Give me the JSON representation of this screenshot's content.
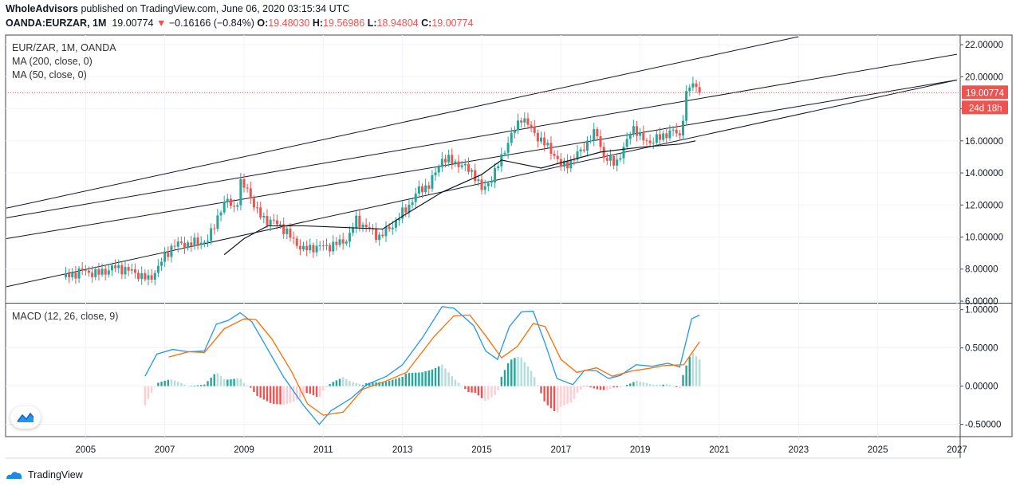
{
  "header": {
    "publisher": "WholeAdvisors",
    "published_text": " published on TradingView.com, June 06, 2020 03:15:34 UTC",
    "symbol": "OANDA:EURZAR, 1M",
    "last": "19.00774",
    "change_arrow": "▼",
    "change": "−0.16166 (−0.84%)",
    "o_label": "O:",
    "o": "19.48030",
    "h_label": "H:",
    "h": "19.56986",
    "l_label": "L:",
    "l": "18.94804",
    "c_label": "C:",
    "c": "19.00774"
  },
  "legend": {
    "title": "EUR/ZAR, 1M, OANDA",
    "ma200": "MA (200, close, 0)",
    "ma50": "MA (50, close, 0)",
    "macd": "MACD (12, 26, close, 9)"
  },
  "price_label": "19.00774",
  "countdown_label": "24d 18h",
  "footer": {
    "brand": "TradingView"
  },
  "colors": {
    "up": "#26a69a",
    "down": "#ef5350",
    "macd": "#2196f3",
    "signal": "#ff6d00",
    "price_line": "#ef5350"
  },
  "chart_data": [
    {
      "type": "candlestick",
      "title": "EUR/ZAR, 1M, OANDA",
      "x_ticks": [
        "2005",
        "2007",
        "2009",
        "2011",
        "2013",
        "2015",
        "2017",
        "2019",
        "2021",
        "2023",
        "2025",
        "2027"
      ],
      "y_ticks": [
        "22.00000",
        "20.00000",
        "18.00000",
        "16.00000",
        "14.00000",
        "12.00000",
        "10.00000",
        "8.00000",
        "6.00000"
      ],
      "ylim": [
        5.9,
        22.6
      ],
      "xlim": [
        2002.98,
        2027.08
      ],
      "last_price": 19.00774,
      "close_path": [
        [
          2004.5,
          7.5
        ],
        [
          2004.9,
          7.9
        ],
        [
          2005.3,
          7.7
        ],
        [
          2005.7,
          8.1
        ],
        [
          2006.0,
          8.0
        ],
        [
          2006.4,
          7.6
        ],
        [
          2006.6,
          7.3
        ],
        [
          2006.9,
          8.4
        ],
        [
          2007.2,
          9.5
        ],
        [
          2007.7,
          9.6
        ],
        [
          2008.1,
          9.8
        ],
        [
          2008.4,
          11.7
        ],
        [
          2008.6,
          12.3
        ],
        [
          2008.8,
          11.7
        ],
        [
          2008.9,
          13.3
        ],
        [
          2009.1,
          13.0
        ],
        [
          2009.3,
          11.6
        ],
        [
          2009.6,
          11.0
        ],
        [
          2009.9,
          10.8
        ],
        [
          2010.2,
          9.9
        ],
        [
          2010.5,
          9.2
        ],
        [
          2010.8,
          9.4
        ],
        [
          2011.1,
          9.4
        ],
        [
          2011.5,
          9.7
        ],
        [
          2011.7,
          10.2
        ],
        [
          2011.8,
          11.1
        ],
        [
          2012.1,
          10.6
        ],
        [
          2012.4,
          10.0
        ],
        [
          2012.7,
          10.6
        ],
        [
          2012.9,
          11.2
        ],
        [
          2013.2,
          12.1
        ],
        [
          2013.4,
          12.9
        ],
        [
          2013.7,
          13.3
        ],
        [
          2014.0,
          14.9
        ],
        [
          2014.4,
          14.6
        ],
        [
          2014.8,
          14.0
        ],
        [
          2015.0,
          12.9
        ],
        [
          2015.3,
          13.8
        ],
        [
          2015.6,
          15.6
        ],
        [
          2016.0,
          17.5
        ],
        [
          2016.2,
          16.9
        ],
        [
          2016.5,
          16.0
        ],
        [
          2016.8,
          15.3
        ],
        [
          2017.0,
          14.4
        ],
        [
          2017.3,
          14.8
        ],
        [
          2017.6,
          15.7
        ],
        [
          2017.9,
          16.6
        ],
        [
          2018.1,
          14.8
        ],
        [
          2018.4,
          14.7
        ],
        [
          2018.6,
          15.5
        ],
        [
          2018.8,
          17.0
        ],
        [
          2019.0,
          16.2
        ],
        [
          2019.3,
          15.9
        ],
        [
          2019.6,
          16.4
        ],
        [
          2019.9,
          16.6
        ],
        [
          2020.0,
          16.3
        ],
        [
          2020.2,
          19.3
        ],
        [
          2020.4,
          19.6
        ],
        [
          2020.5,
          19.0
        ]
      ],
      "ma50": [
        [
          2008.5,
          8.9
        ],
        [
          2009.0,
          9.9
        ],
        [
          2009.6,
          10.7
        ],
        [
          2010.5,
          10.7
        ],
        [
          2011.5,
          10.6
        ],
        [
          2012.5,
          10.5
        ],
        [
          2013.0,
          11.3
        ],
        [
          2014.0,
          12.8
        ],
        [
          2015.0,
          13.9
        ],
        [
          2015.5,
          14.8
        ],
        [
          2016.5,
          14.3
        ],
        [
          2018.0,
          15.3
        ],
        [
          2019.0,
          15.6
        ],
        [
          2020.0,
          15.8
        ],
        [
          2020.4,
          16.0
        ]
      ],
      "trendlines": [
        {
          "x1": 2003.0,
          "y1": 11.8,
          "x2": 2023.0,
          "y2": 22.5
        },
        {
          "x1": 2003.0,
          "y1": 11.2,
          "x2": 2027.0,
          "y2": 21.4
        },
        {
          "x1": 2003.0,
          "y1": 9.9,
          "x2": 2027.0,
          "y2": 19.8
        },
        {
          "x1": 2003.0,
          "y1": 6.9,
          "x2": 2027.0,
          "y2": 19.8
        }
      ]
    },
    {
      "type": "macd",
      "title": "MACD (12, 26, close, 9)",
      "y_ticks": [
        "1.00000",
        "0.50000",
        "0.00000",
        "-0.50000"
      ],
      "ylim": [
        -0.66,
        1.08
      ],
      "macd": [
        [
          2006.5,
          0.13
        ],
        [
          2006.8,
          0.42
        ],
        [
          2007.2,
          0.48
        ],
        [
          2007.6,
          0.45
        ],
        [
          2008.0,
          0.46
        ],
        [
          2008.3,
          0.81
        ],
        [
          2008.6,
          0.86
        ],
        [
          2008.9,
          0.96
        ],
        [
          2009.2,
          0.84
        ],
        [
          2009.6,
          0.48
        ],
        [
          2010.0,
          0.12
        ],
        [
          2010.5,
          -0.25
        ],
        [
          2010.9,
          -0.5
        ],
        [
          2011.2,
          -0.32
        ],
        [
          2011.7,
          -0.16
        ],
        [
          2012.1,
          0.02
        ],
        [
          2012.6,
          0.13
        ],
        [
          2013.0,
          0.28
        ],
        [
          2013.5,
          0.63
        ],
        [
          2014.0,
          1.04
        ],
        [
          2014.3,
          1.02
        ],
        [
          2014.8,
          0.79
        ],
        [
          2015.1,
          0.46
        ],
        [
          2015.4,
          0.35
        ],
        [
          2015.7,
          0.78
        ],
        [
          2016.0,
          0.97
        ],
        [
          2016.3,
          0.98
        ],
        [
          2016.6,
          0.56
        ],
        [
          2016.9,
          0.1
        ],
        [
          2017.3,
          0.02
        ],
        [
          2017.6,
          0.21
        ],
        [
          2017.9,
          0.2
        ],
        [
          2018.2,
          0.1
        ],
        [
          2018.5,
          0.14
        ],
        [
          2018.9,
          0.28
        ],
        [
          2019.3,
          0.26
        ],
        [
          2019.7,
          0.3
        ],
        [
          2020.0,
          0.25
        ],
        [
          2020.3,
          0.88
        ],
        [
          2020.5,
          0.93
        ]
      ],
      "signal": [
        [
          2007.1,
          0.38
        ],
        [
          2007.6,
          0.45
        ],
        [
          2008.0,
          0.44
        ],
        [
          2008.5,
          0.75
        ],
        [
          2009.0,
          0.88
        ],
        [
          2009.3,
          0.87
        ],
        [
          2009.7,
          0.62
        ],
        [
          2010.2,
          0.19
        ],
        [
          2010.6,
          -0.23
        ],
        [
          2011.0,
          -0.38
        ],
        [
          2011.5,
          -0.34
        ],
        [
          2012.0,
          -0.04
        ],
        [
          2012.6,
          0.07
        ],
        [
          2013.1,
          0.18
        ],
        [
          2013.8,
          0.65
        ],
        [
          2014.3,
          0.92
        ],
        [
          2014.7,
          0.93
        ],
        [
          2015.1,
          0.66
        ],
        [
          2015.5,
          0.37
        ],
        [
          2015.9,
          0.52
        ],
        [
          2016.3,
          0.82
        ],
        [
          2016.6,
          0.78
        ],
        [
          2017.0,
          0.35
        ],
        [
          2017.4,
          0.18
        ],
        [
          2017.9,
          0.24
        ],
        [
          2018.3,
          0.13
        ],
        [
          2018.8,
          0.2
        ],
        [
          2019.2,
          0.23
        ],
        [
          2019.6,
          0.27
        ],
        [
          2020.1,
          0.28
        ],
        [
          2020.5,
          0.58
        ]
      ],
      "histogram_range": [
        2006.5,
        2020.5
      ]
    }
  ]
}
